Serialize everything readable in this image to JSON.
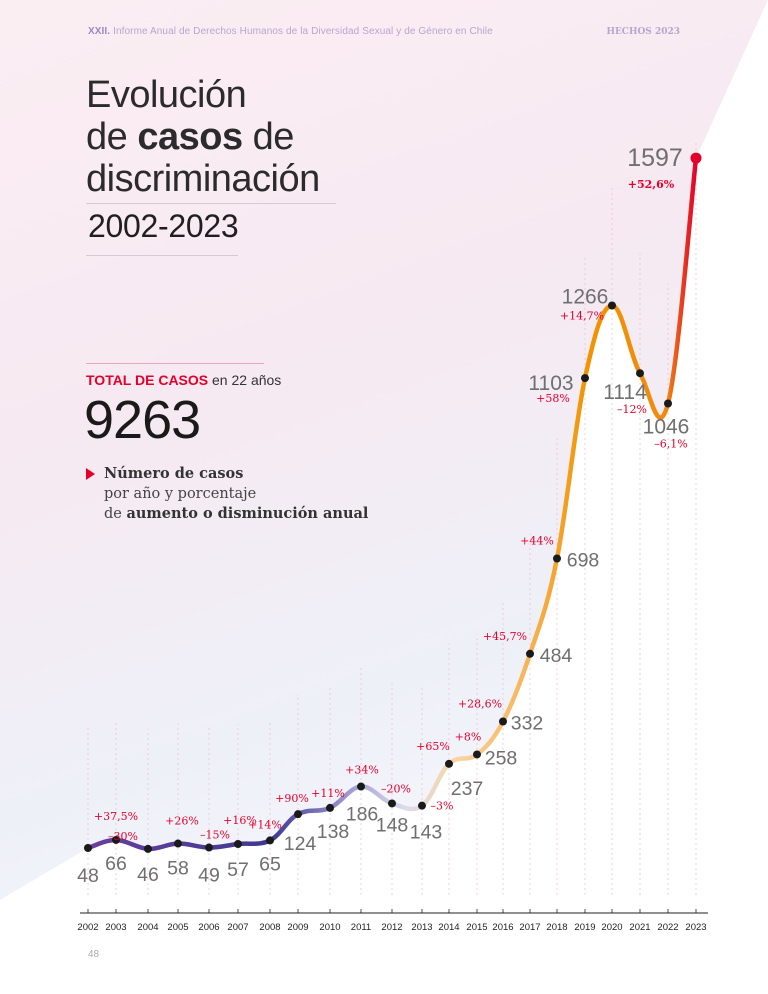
{
  "header": {
    "series_number": "XXII.",
    "report_title": "Informe Anual de Derechos Humanos de la Diversidad Sexual y de Género en Chile",
    "section": "HECHOS 2023"
  },
  "title": {
    "line1": "Evolución",
    "line2_pre": "de ",
    "line2_bold": "casos",
    "line2_post": " de",
    "line3": "discriminación",
    "years": "2002-2023"
  },
  "total": {
    "label_bold": "TOTAL DE CASOS",
    "label_rest": "en 22 años",
    "value": "9263"
  },
  "legend": {
    "line1_bold": "Número de casos",
    "line2": "por año y porcentaje",
    "line3_pre": "de ",
    "line3_bold": "aumento o disminución anual"
  },
  "page_number": "48",
  "colors": {
    "accent_red": "#e3002b",
    "purple": "#4b2e8c",
    "orange": "#f29400",
    "text_gray": "#6f6f6f"
  },
  "chart_data": {
    "type": "line",
    "title": "Evolución de casos de discriminación 2002-2023",
    "xlabel": "",
    "ylabel": "",
    "x": [
      "2002",
      "2003",
      "2004",
      "2005",
      "2006",
      "2007",
      "2008",
      "2009",
      "2010",
      "2011",
      "2012",
      "2013",
      "2014",
      "2015",
      "2016",
      "2017",
      "2018",
      "2019",
      "2020",
      "2021",
      "2022",
      "2023"
    ],
    "values": [
      48,
      66,
      46,
      58,
      49,
      57,
      65,
      124,
      138,
      186,
      148,
      143,
      237,
      258,
      332,
      484,
      698,
      1103,
      1266,
      1114,
      1046,
      1597
    ],
    "value_labels": [
      "48",
      "66",
      "46",
      "58",
      "49",
      "57",
      "65",
      "124",
      "138",
      "186",
      "148",
      "143",
      "237",
      "258",
      "332",
      "484",
      "698",
      "1103",
      "1266",
      "1114",
      "1046",
      "1597"
    ],
    "percent_change": [
      "",
      "+37,5%",
      "–30%",
      "+26%",
      "–15%",
      "+16%",
      "+14%",
      "+90%",
      "+11%",
      "+34%",
      "–20%",
      "–3%",
      "+65%",
      "+8%",
      "+28,6%",
      "+45,7%",
      "+44%",
      "+58%",
      "+14,7%",
      "–12%",
      "–6,1%",
      "+52,6%"
    ],
    "ylim": [
      0,
      1650
    ],
    "grid": false
  }
}
